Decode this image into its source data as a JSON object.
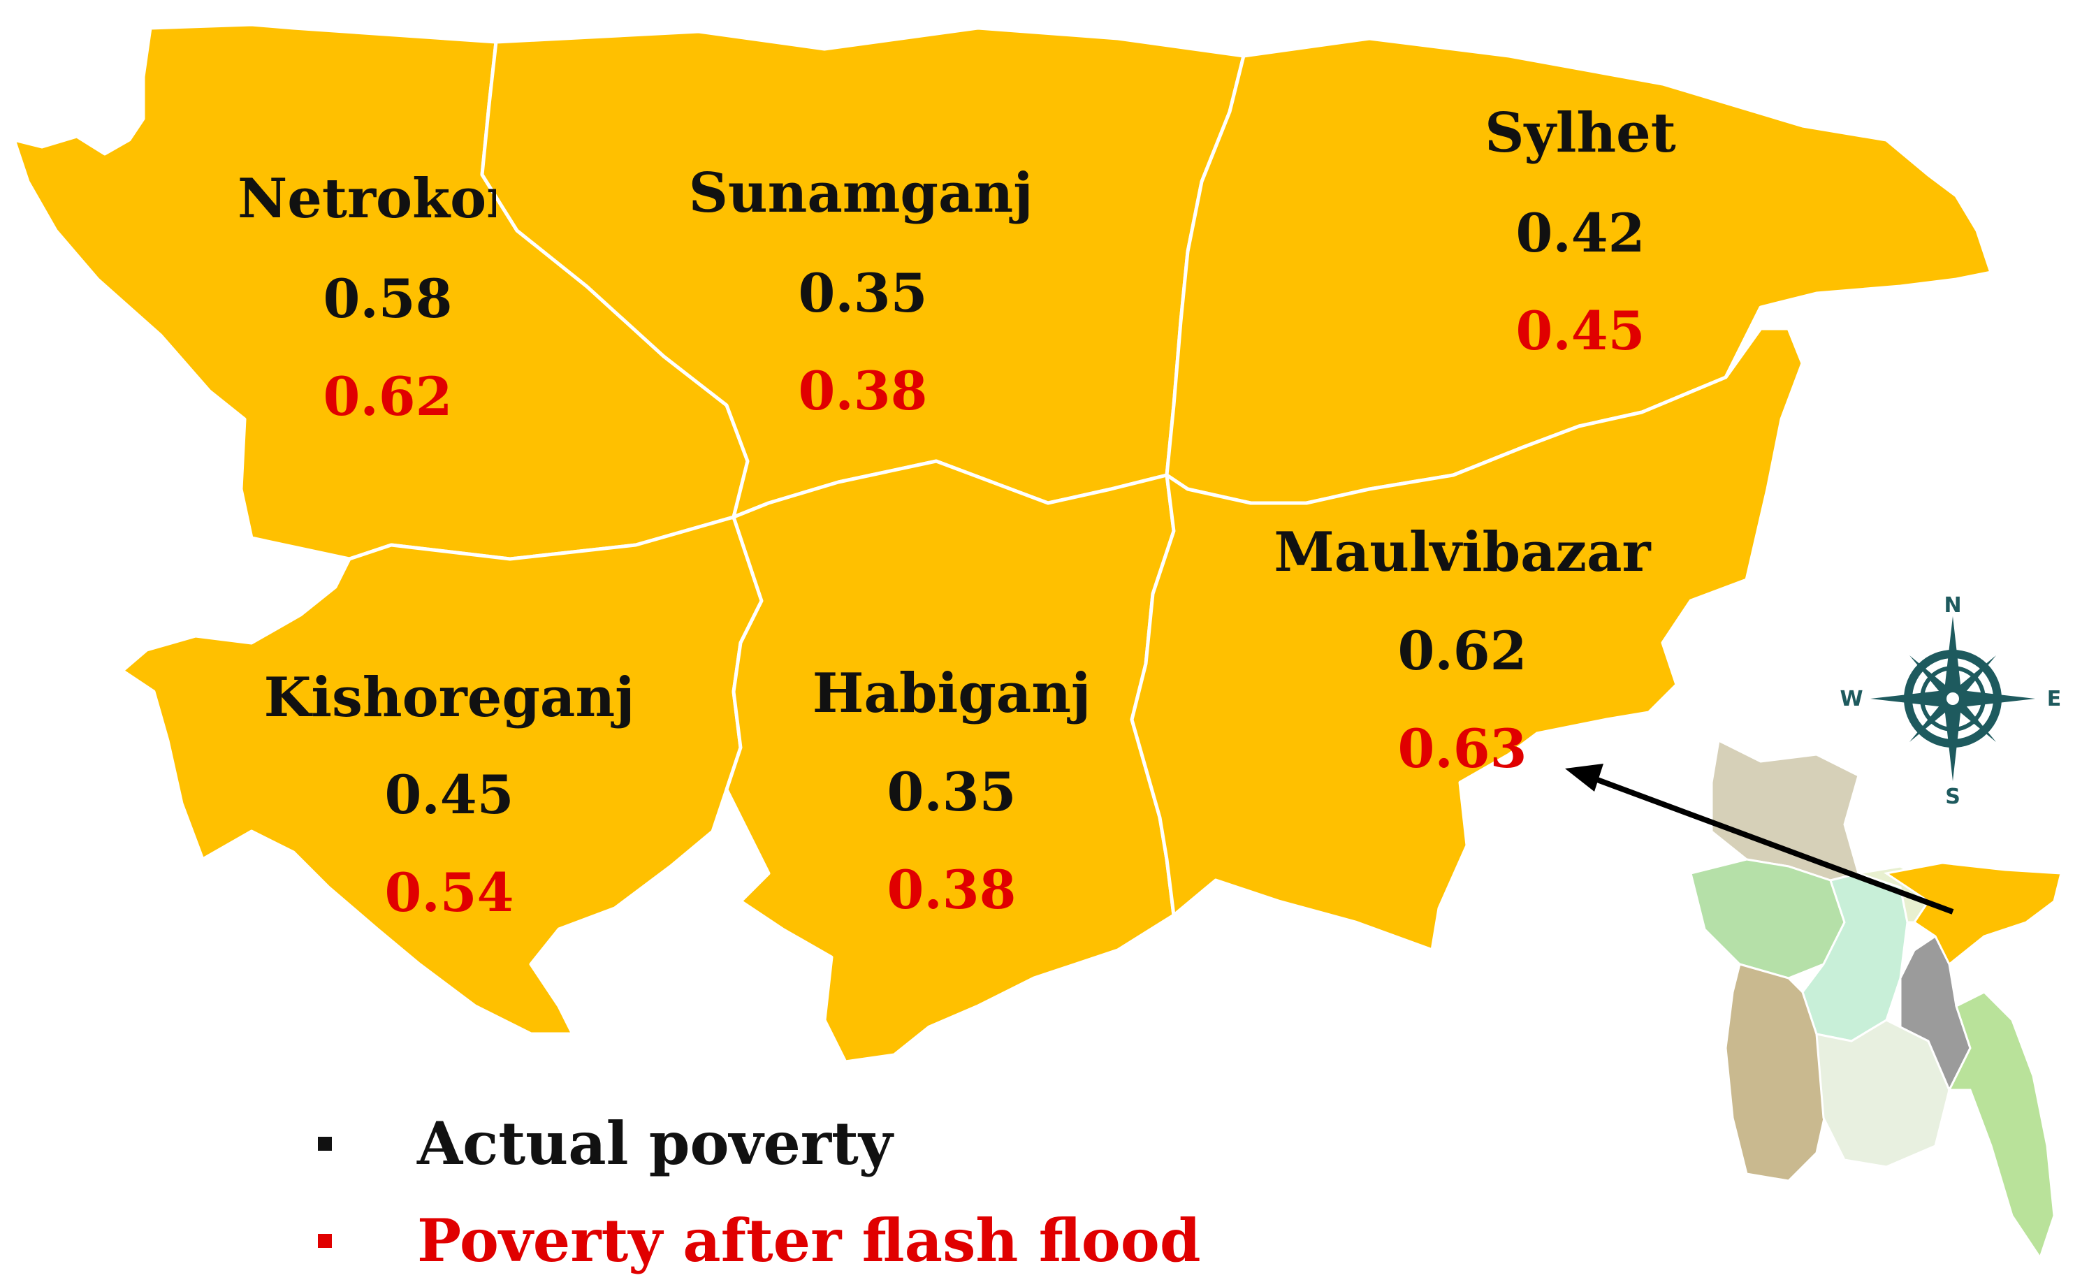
{
  "colors": {
    "district_fill": "#FFC000",
    "actual_poverty": "#111111",
    "after_flood": "#E00000",
    "compass": "#1E5A5E"
  },
  "districts": [
    {
      "id": "netrokona",
      "name": "Netrokon",
      "actual": "0.58",
      "after_flood": "0.62"
    },
    {
      "id": "sunamganj",
      "name": "Sunamganj",
      "actual": "0.35",
      "after_flood": "0.38"
    },
    {
      "id": "sylhet",
      "name": "Sylhet",
      "actual": "0.42",
      "after_flood": "0.45"
    },
    {
      "id": "kishoreganj",
      "name": "Kishoreganj",
      "actual": "0.45",
      "after_flood": "0.54"
    },
    {
      "id": "habiganj",
      "name": "Habiganj",
      "actual": "0.35",
      "after_flood": "0.38"
    },
    {
      "id": "maulvibazar",
      "name": "Maulvibazar",
      "actual": "0.62",
      "after_flood": "0.63"
    }
  ],
  "legend": [
    {
      "label": "Actual poverty",
      "color": "#111111"
    },
    {
      "label": "Poverty after flash flood",
      "color": "#E00000"
    }
  ],
  "compass": {
    "n": "N",
    "s": "S",
    "e": "E",
    "w": "W"
  },
  "inset": {
    "region_colors": [
      "#D6D0B8",
      "#B5E0A8",
      "#C8EFD8",
      "#C9B98F",
      "#9B9B9B",
      "#E8F0E0",
      "#B9E29A",
      "#FFC000"
    ]
  }
}
